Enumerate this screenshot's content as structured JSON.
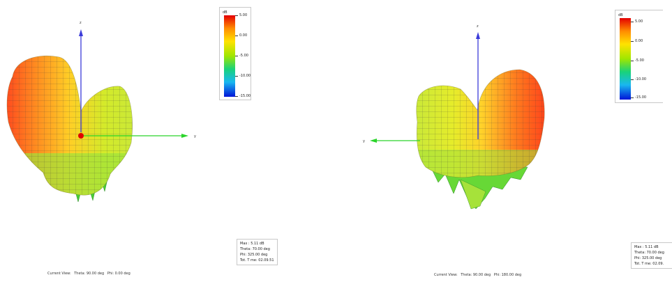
{
  "colors": {
    "axis_z": "#3b3bd9",
    "axis_y": "#2ad42a",
    "max_marker": "#e00000",
    "mesh_line": "#3a3a3a"
  },
  "views": [
    {
      "axes": {
        "z": "z",
        "y": "y"
      },
      "legend": {
        "unit": "dB",
        "ticks": [
          "5.00",
          "0.00",
          "-5.00",
          "-10.00",
          "-15.00"
        ]
      },
      "info": {
        "max": "Max : 5.11 dB",
        "theta": "Theta: 70.00 deg",
        "phi": "Phi: 325.00 deg",
        "total": "Tot. T me: 02.09.51"
      },
      "current_view": {
        "prefix": "Current View:",
        "theta": "Theta: 90.00 deg",
        "phi": "Phi: 0.00 deg"
      }
    },
    {
      "axes": {
        "z": "z",
        "y": "y"
      },
      "legend": {
        "unit": "dB",
        "ticks": [
          "5.00",
          "0.00",
          "-5.00",
          "-10.00",
          "-15.00"
        ]
      },
      "info": {
        "max": "Max : 5.11 dB",
        "theta": "Theta: 70.00 deg",
        "phi": "Phi: 325.00 deg",
        "total": "Tot. T me: 02.09."
      },
      "current_view": {
        "prefix": "Current View:",
        "theta": "Theta: 90.00 deg",
        "phi": "Phi: 180.00 deg"
      }
    }
  ]
}
